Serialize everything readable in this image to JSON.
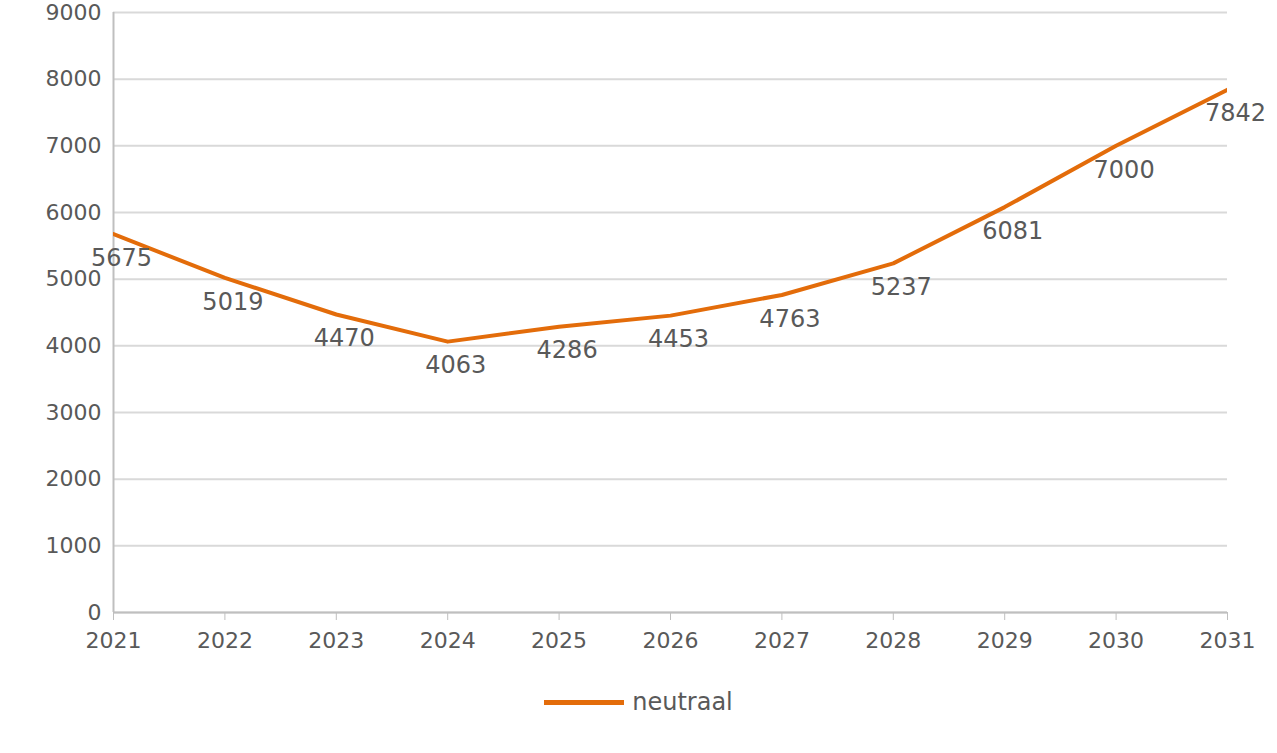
{
  "chart_data": {
    "type": "line",
    "x": [
      2021,
      2022,
      2023,
      2024,
      2025,
      2026,
      2027,
      2028,
      2029,
      2030,
      2031
    ],
    "series": [
      {
        "name": "neutraal",
        "color": "#e36c0a",
        "values": [
          5675,
          5019,
          4470,
          4063,
          4286,
          4453,
          4763,
          5237,
          6081,
          7000,
          7842
        ]
      }
    ],
    "xlim": [
      2021,
      2031
    ],
    "xticks": [
      2021,
      2022,
      2023,
      2024,
      2025,
      2026,
      2027,
      2028,
      2029,
      2030,
      2031
    ],
    "ylim": [
      0,
      9000
    ],
    "yticks": [
      0,
      1000,
      2000,
      3000,
      4000,
      5000,
      6000,
      7000,
      8000,
      9000
    ],
    "grid": true,
    "data_labels": true,
    "legend": "bottom"
  }
}
